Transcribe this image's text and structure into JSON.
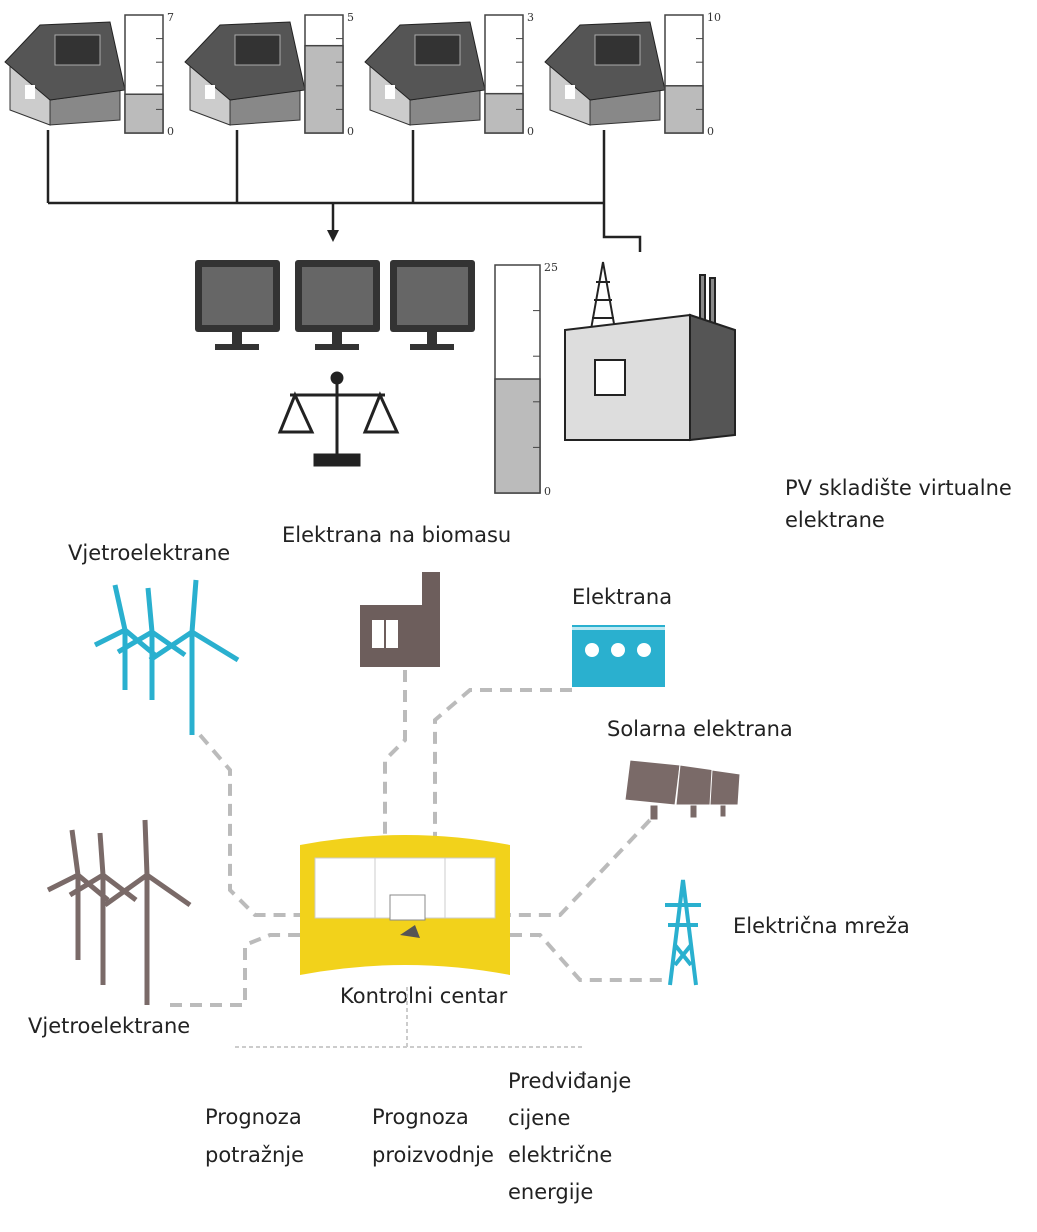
{
  "houses": [
    {
      "gauge": {
        "max": 7,
        "min": 0,
        "level": 2.3
      }
    },
    {
      "gauge": {
        "max": 5,
        "min": 0,
        "level": 3.7
      }
    },
    {
      "gauge": {
        "max": 3,
        "min": 0,
        "level": 1
      }
    },
    {
      "gauge": {
        "max": 10,
        "min": 0,
        "level": 4
      }
    }
  ],
  "storage_gauge": {
    "max": 25,
    "min": 0,
    "level": 12.5
  },
  "labels": {
    "pv_storage": [
      "PV skladište virtualne",
      "elektrane"
    ],
    "wind_top": "Vjetroelektrane",
    "biomass": "Elektrana na biomasu",
    "power_plant": "Elektrana",
    "solar": "Solarna elektrana",
    "grid": "Električna mreža",
    "control_center": "Kontrolni centar",
    "wind_bottom": "Vjetroelektrane",
    "demand_forecast": [
      "Prognoza",
      "potražnje"
    ],
    "production_forecast": [
      "Prognoza",
      "proizvodnje"
    ],
    "price_forecast": [
      "Predviđanje",
      "cijene",
      "električne",
      "energije"
    ]
  }
}
